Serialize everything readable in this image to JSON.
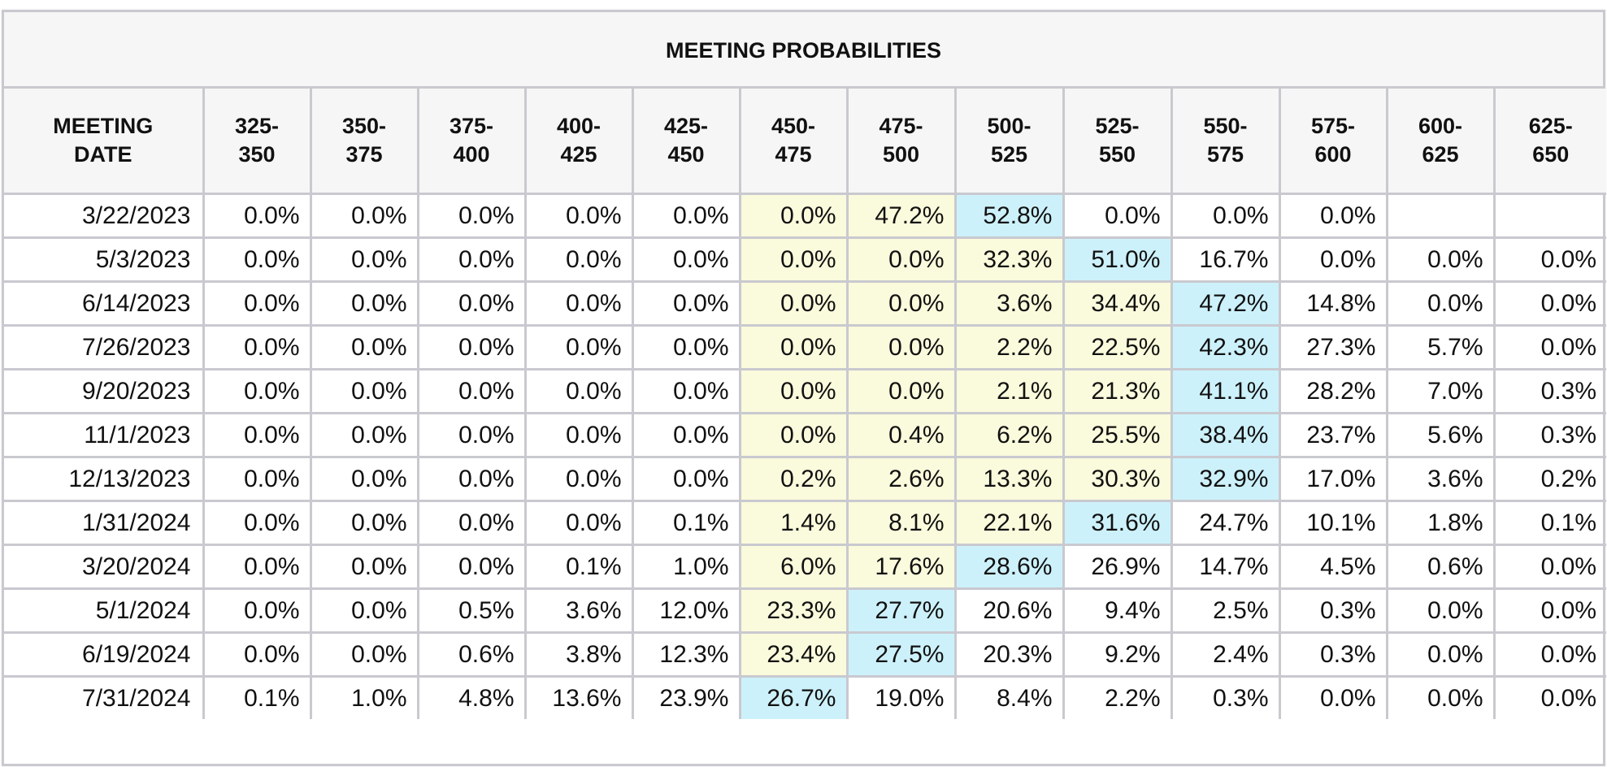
{
  "chart_data": {
    "type": "table",
    "title": "MEETING PROBABILITIES",
    "columns": [
      [
        "MEETING",
        "DATE"
      ],
      [
        "325-",
        "350"
      ],
      [
        "350-",
        "375"
      ],
      [
        "375-",
        "400"
      ],
      [
        "400-",
        "425"
      ],
      [
        "425-",
        "450"
      ],
      [
        "450-",
        "475"
      ],
      [
        "475-",
        "500"
      ],
      [
        "500-",
        "525"
      ],
      [
        "525-",
        "550"
      ],
      [
        "550-",
        "575"
      ],
      [
        "575-",
        "600"
      ],
      [
        "600-",
        "625"
      ],
      [
        "625-",
        "650"
      ]
    ],
    "rows": [
      {
        "date": "3/22/2023",
        "values": [
          "0.0%",
          "0.0%",
          "0.0%",
          "0.0%",
          "0.0%",
          "0.0%",
          "47.2%",
          "52.8%",
          "0.0%",
          "0.0%",
          "0.0%",
          "",
          ""
        ]
      },
      {
        "date": "5/3/2023",
        "values": [
          "0.0%",
          "0.0%",
          "0.0%",
          "0.0%",
          "0.0%",
          "0.0%",
          "0.0%",
          "32.3%",
          "51.0%",
          "16.7%",
          "0.0%",
          "0.0%",
          "0.0%"
        ]
      },
      {
        "date": "6/14/2023",
        "values": [
          "0.0%",
          "0.0%",
          "0.0%",
          "0.0%",
          "0.0%",
          "0.0%",
          "0.0%",
          "3.6%",
          "34.4%",
          "47.2%",
          "14.8%",
          "0.0%",
          "0.0%"
        ]
      },
      {
        "date": "7/26/2023",
        "values": [
          "0.0%",
          "0.0%",
          "0.0%",
          "0.0%",
          "0.0%",
          "0.0%",
          "0.0%",
          "2.2%",
          "22.5%",
          "42.3%",
          "27.3%",
          "5.7%",
          "0.0%"
        ]
      },
      {
        "date": "9/20/2023",
        "values": [
          "0.0%",
          "0.0%",
          "0.0%",
          "0.0%",
          "0.0%",
          "0.0%",
          "0.0%",
          "2.1%",
          "21.3%",
          "41.1%",
          "28.2%",
          "7.0%",
          "0.3%"
        ]
      },
      {
        "date": "11/1/2023",
        "values": [
          "0.0%",
          "0.0%",
          "0.0%",
          "0.0%",
          "0.0%",
          "0.0%",
          "0.4%",
          "6.2%",
          "25.5%",
          "38.4%",
          "23.7%",
          "5.6%",
          "0.3%"
        ]
      },
      {
        "date": "12/13/2023",
        "values": [
          "0.0%",
          "0.0%",
          "0.0%",
          "0.0%",
          "0.0%",
          "0.2%",
          "2.6%",
          "13.3%",
          "30.3%",
          "32.9%",
          "17.0%",
          "3.6%",
          "0.2%"
        ]
      },
      {
        "date": "1/31/2024",
        "values": [
          "0.0%",
          "0.0%",
          "0.0%",
          "0.0%",
          "0.1%",
          "1.4%",
          "8.1%",
          "22.1%",
          "31.6%",
          "24.7%",
          "10.1%",
          "1.8%",
          "0.1%"
        ]
      },
      {
        "date": "3/20/2024",
        "values": [
          "0.0%",
          "0.0%",
          "0.0%",
          "0.1%",
          "1.0%",
          "6.0%",
          "17.6%",
          "28.6%",
          "26.9%",
          "14.7%",
          "4.5%",
          "0.6%",
          "0.0%"
        ]
      },
      {
        "date": "5/1/2024",
        "values": [
          "0.0%",
          "0.0%",
          "0.5%",
          "3.6%",
          "12.0%",
          "23.3%",
          "27.7%",
          "20.6%",
          "9.4%",
          "2.5%",
          "0.3%",
          "0.0%",
          "0.0%"
        ]
      },
      {
        "date": "6/19/2024",
        "values": [
          "0.0%",
          "0.0%",
          "0.6%",
          "3.8%",
          "12.3%",
          "23.4%",
          "27.5%",
          "20.3%",
          "9.2%",
          "2.4%",
          "0.3%",
          "0.0%",
          "0.0%"
        ]
      },
      {
        "date": "7/31/2024",
        "values": [
          "0.1%",
          "1.0%",
          "4.8%",
          "13.6%",
          "23.9%",
          "26.7%",
          "19.0%",
          "8.4%",
          "2.2%",
          "0.3%",
          "0.0%",
          "0.0%",
          "0.0%"
        ]
      }
    ],
    "highlight_start_column": 6,
    "current_target_column": [
      8,
      9,
      10,
      10,
      10,
      10,
      10,
      9,
      8,
      7,
      7,
      6
    ],
    "highlight_colors": {
      "range": "#fafadc",
      "current": "#cdf1fa"
    }
  }
}
